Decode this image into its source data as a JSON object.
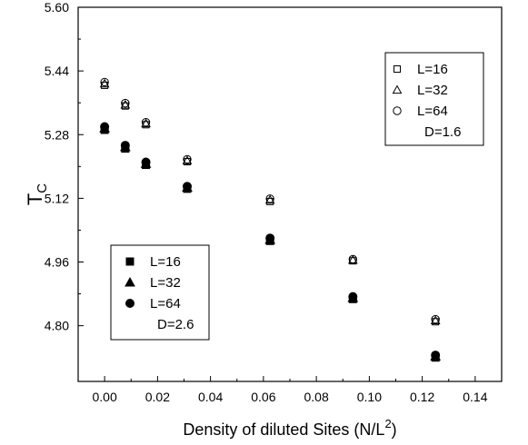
{
  "chart_data": {
    "type": "scatter",
    "title": "",
    "xlabel": "Density of diluted Sites (N/L",
    "xlabel_superscript": "2",
    "xlabel_suffix": ")",
    "ylabel": "T",
    "ylabel_subscript": "C",
    "xlim": [
      -0.01,
      0.15
    ],
    "ylim": [
      4.66,
      5.6
    ],
    "x_ticks": [
      0.0,
      0.02,
      0.04,
      0.06,
      0.08,
      0.1,
      0.12,
      0.14
    ],
    "x_tick_labels": [
      "0.00",
      "0.02",
      "0.04",
      "0.06",
      "0.08",
      "0.10",
      "0.12",
      "0.14"
    ],
    "y_ticks": [
      4.8,
      4.96,
      5.12,
      5.28,
      5.44,
      5.6
    ],
    "y_tick_labels": [
      "4.80",
      "4.96",
      "5.12",
      "5.28",
      "5.44",
      "5.60"
    ],
    "grid": false,
    "series": [
      {
        "name": "L=16",
        "group": "D=1.6",
        "marker": "open-square",
        "x": [
          0.0,
          0.0078,
          0.0156,
          0.0312,
          0.0625,
          0.0938,
          0.125
        ],
        "y": [
          5.404,
          5.352,
          5.305,
          5.212,
          5.112,
          4.963,
          4.81
        ]
      },
      {
        "name": "L=32",
        "group": "D=1.6",
        "marker": "open-triangle",
        "x": [
          0.0,
          0.0078,
          0.0156,
          0.0312,
          0.0625,
          0.0938,
          0.125
        ],
        "y": [
          5.408,
          5.355,
          5.308,
          5.215,
          5.116,
          4.965,
          4.813
        ]
      },
      {
        "name": "L=64",
        "group": "D=1.6",
        "marker": "open-circle",
        "x": [
          0.0,
          0.0078,
          0.0156,
          0.0312,
          0.0625,
          0.0938,
          0.125
        ],
        "y": [
          5.412,
          5.359,
          5.311,
          5.218,
          5.119,
          4.967,
          4.816
        ]
      },
      {
        "name": "L=16",
        "group": "D=2.6",
        "marker": "filled-square",
        "x": [
          0.0,
          0.0078,
          0.0156,
          0.0312,
          0.0625,
          0.0938,
          0.125
        ],
        "y": [
          5.292,
          5.245,
          5.204,
          5.144,
          5.013,
          4.867,
          4.72
        ]
      },
      {
        "name": "L=32",
        "group": "D=2.6",
        "marker": "filled-triangle",
        "x": [
          0.0,
          0.0078,
          0.0156,
          0.0312,
          0.0625,
          0.0938,
          0.125
        ],
        "y": [
          5.296,
          5.249,
          5.207,
          5.147,
          5.016,
          4.87,
          4.723
        ]
      },
      {
        "name": "L=64",
        "group": "D=2.6",
        "marker": "filled-circle",
        "x": [
          0.0,
          0.0078,
          0.0156,
          0.0312,
          0.0625,
          0.0938,
          0.125
        ],
        "y": [
          5.3,
          5.253,
          5.211,
          5.15,
          5.02,
          4.873,
          4.726
        ]
      }
    ],
    "legends": [
      {
        "placement": "top-right",
        "entries": [
          {
            "marker": "open-square",
            "label": "L=16"
          },
          {
            "marker": "open-triangle",
            "label": "L=32"
          },
          {
            "marker": "open-circle",
            "label": "L=64"
          }
        ],
        "footer": "D=1.6"
      },
      {
        "placement": "bottom-left",
        "entries": [
          {
            "marker": "filled-square",
            "label": "L=16"
          },
          {
            "marker": "filled-triangle",
            "label": "L=32"
          },
          {
            "marker": "filled-circle",
            "label": "L=64"
          }
        ],
        "footer": "D=2.6"
      }
    ]
  }
}
